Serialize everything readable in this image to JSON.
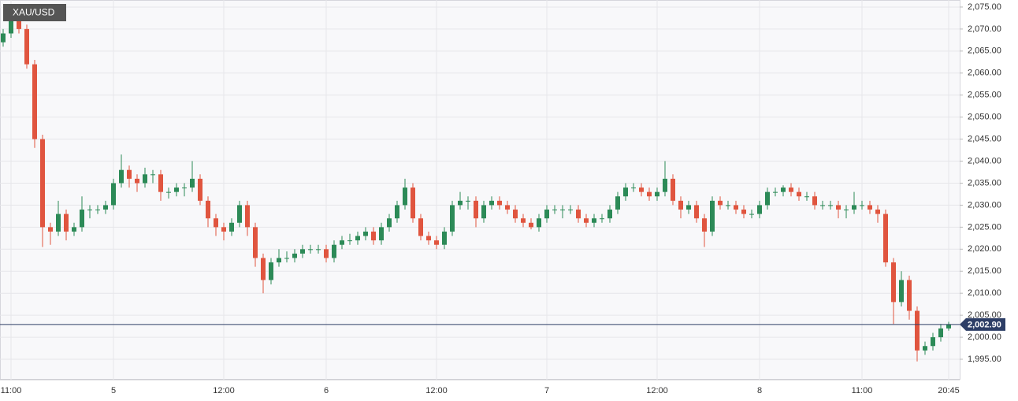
{
  "chart_data": {
    "type": "candlestick",
    "title": "XAU/USD",
    "up_color": "#2c8a57",
    "down_color": "#e0553f",
    "grid": true,
    "ylim": [
      1990.35,
      2076.6
    ],
    "yticks": [
      {
        "value": 1995,
        "label": "1,995.00"
      },
      {
        "value": 2000,
        "label": "2,000.00"
      },
      {
        "value": 2005,
        "label": "2,005.00"
      },
      {
        "value": 2010,
        "label": "2,010.00"
      },
      {
        "value": 2015,
        "label": "2,015.00"
      },
      {
        "value": 2020,
        "label": "2,020.00"
      },
      {
        "value": 2025,
        "label": "2,025.00"
      },
      {
        "value": 2030,
        "label": "2,030.00"
      },
      {
        "value": 2035,
        "label": "2,035.00"
      },
      {
        "value": 2040,
        "label": "2,040.00"
      },
      {
        "value": 2045,
        "label": "2,045.00"
      },
      {
        "value": 2050,
        "label": "2,050.00"
      },
      {
        "value": 2055,
        "label": "2,055.00"
      },
      {
        "value": 2060,
        "label": "2,060.00"
      },
      {
        "value": 2065,
        "label": "2,065.00"
      },
      {
        "value": 2070,
        "label": "2,070.00"
      },
      {
        "value": 2075,
        "label": "2,075.00"
      }
    ],
    "last_price": {
      "value": 2002.9,
      "label": "2,002.90",
      "color": "#2d3e66"
    },
    "categories": [
      null,
      "11:00",
      null,
      null,
      null,
      null,
      null,
      null,
      null,
      null,
      null,
      null,
      null,
      null,
      "5",
      null,
      null,
      null,
      null,
      null,
      null,
      null,
      null,
      null,
      null,
      null,
      null,
      null,
      "12:00",
      null,
      null,
      null,
      null,
      null,
      null,
      null,
      null,
      null,
      null,
      null,
      null,
      "6",
      null,
      null,
      null,
      null,
      null,
      null,
      null,
      null,
      null,
      null,
      null,
      null,
      null,
      "12:00",
      null,
      null,
      null,
      null,
      null,
      null,
      null,
      null,
      null,
      null,
      null,
      null,
      null,
      "7",
      null,
      null,
      null,
      null,
      null,
      null,
      null,
      null,
      null,
      null,
      null,
      null,
      null,
      "12:00",
      null,
      null,
      null,
      null,
      null,
      null,
      null,
      null,
      null,
      null,
      null,
      null,
      "8",
      null,
      null,
      null,
      null,
      null,
      null,
      null,
      null,
      null,
      null,
      null,
      null,
      "11:00",
      null,
      null,
      null,
      null,
      null,
      null,
      null,
      null,
      null,
      null,
      "20:45"
    ],
    "open": [
      2067,
      2069,
      2072,
      2070,
      2062,
      2045,
      2025,
      2024,
      2028,
      2024,
      2025,
      2029,
      2029,
      2029,
      2030,
      2035,
      2038,
      2036,
      2035,
      2037,
      2037,
      2033,
      2033,
      2034,
      2034,
      2036,
      2031,
      2027,
      2025,
      2024,
      2026,
      2030,
      2025,
      2018,
      2013,
      2017,
      2018,
      2018,
      2019,
      2020,
      2020,
      2020,
      2018,
      2021,
      2022,
      2022,
      2023,
      2024,
      2022,
      2025,
      2027,
      2030,
      2034,
      2027,
      2023,
      2022,
      2021,
      2024,
      2030,
      2031,
      2031,
      2027,
      2030,
      2031,
      2030,
      2029,
      2027,
      2026,
      2025,
      2027,
      2029,
      2029,
      2029,
      2029,
      2027,
      2026,
      2027,
      2027,
      2029,
      2032,
      2034,
      2034,
      2033,
      2032,
      2033,
      2036,
      2031,
      2029,
      2030,
      2027,
      2024,
      2031,
      2030,
      2030,
      2029,
      2028,
      2028,
      2030,
      2033,
      2033,
      2034,
      2033,
      2032,
      2032,
      2030,
      2030,
      2030,
      2029,
      2029,
      2030,
      2030,
      2029,
      2028,
      2017,
      2008,
      2013,
      2006,
      1997,
      1998,
      2000,
      2002
    ],
    "high": [
      2070,
      2075,
      2073,
      2071,
      2063,
      2046,
      2026,
      2031,
      2029,
      2026,
      2032,
      2030,
      2030,
      2031,
      2036,
      2041.5,
      2039,
      2037,
      2038.5,
      2038,
      2038,
      2034,
      2035,
      2035,
      2040,
      2037,
      2032,
      2028,
      2026,
      2027,
      2031,
      2031,
      2026,
      2019,
      2018,
      2020,
      2019.5,
      2020,
      2021,
      2021,
      2021,
      2021,
      2022,
      2023,
      2023.5,
      2024,
      2025,
      2025,
      2026,
      2028,
      2031,
      2036,
      2035,
      2028,
      2024,
      2023,
      2025,
      2031,
      2033,
      2032,
      2032,
      2031,
      2032,
      2032,
      2031,
      2030,
      2028,
      2027,
      2028,
      2030,
      2030,
      2030,
      2030,
      2030,
      2028,
      2028,
      2028,
      2030,
      2033,
      2035,
      2035,
      2035,
      2034,
      2034,
      2040,
      2037,
      2032,
      2031,
      2031,
      2028,
      2032,
      2032,
      2031,
      2031,
      2030,
      2029,
      2031,
      2034,
      2034,
      2034.5,
      2035,
      2034,
      2033,
      2033,
      2031,
      2031,
      2031,
      2030,
      2033,
      2031,
      2031,
      2030,
      2029,
      2018,
      2015,
      2014,
      2007,
      1999,
      2001,
      2003,
      2003.5
    ],
    "low": [
      2066,
      2068,
      2069,
      2061,
      2043,
      2020.5,
      2021,
      2023,
      2022,
      2023,
      2024,
      2027,
      2028,
      2028,
      2029,
      2034,
      2034,
      2033,
      2034,
      2035,
      2031,
      2031.5,
      2032,
      2032,
      2033,
      2030,
      2025,
      2023,
      2022,
      2023,
      2025,
      2023,
      2016,
      2010,
      2012,
      2016,
      2017,
      2017,
      2018,
      2019,
      2019,
      2017,
      2017,
      2020,
      2021,
      2021,
      2022,
      2021,
      2021,
      2024,
      2026,
      2029,
      2026,
      2022,
      2021,
      2020,
      2020,
      2023,
      2029,
      2029,
      2025,
      2026,
      2029,
      2029,
      2028,
      2026,
      2025,
      2024.5,
      2024,
      2026,
      2028,
      2027,
      2028,
      2026,
      2025,
      2025,
      2026,
      2026,
      2028,
      2031,
      2033,
      2032,
      2031,
      2031,
      2032,
      2030,
      2027,
      2028,
      2026,
      2020.5,
      2023,
      2029,
      2029,
      2028,
      2027,
      2027,
      2027,
      2029,
      2032,
      2032,
      2032,
      2031,
      2031,
      2029,
      2029,
      2029,
      2027,
      2027,
      2028,
      2029,
      2028,
      2026,
      2016,
      2003,
      2007,
      2004,
      1994.5,
      1996,
      1997,
      1999,
      2001.5
    ],
    "close": [
      2069,
      2072,
      2070,
      2062,
      2045,
      2025,
      2024,
      2028,
      2024,
      2025,
      2029,
      2029,
      2029,
      2030,
      2035,
      2038,
      2036,
      2035,
      2037,
      2037,
      2033,
      2033,
      2034,
      2034,
      2036,
      2031,
      2027,
      2025,
      2024,
      2026,
      2030,
      2025,
      2018,
      2013,
      2017,
      2018,
      2018,
      2019,
      2020,
      2020,
      2020,
      2018,
      2021,
      2022,
      2022,
      2023,
      2024,
      2022,
      2025,
      2027,
      2030,
      2034,
      2027,
      2023,
      2022,
      2021,
      2024,
      2030,
      2031,
      2031,
      2027,
      2030,
      2031,
      2030,
      2029,
      2027,
      2026,
      2025,
      2027,
      2029,
      2029,
      2029,
      2029,
      2027,
      2026,
      2027,
      2027,
      2029,
      2032,
      2034,
      2034,
      2033,
      2032,
      2033,
      2036,
      2031,
      2029,
      2030,
      2027,
      2024,
      2031,
      2030,
      2030,
      2029,
      2028,
      2028,
      2030,
      2033,
      2033,
      2034,
      2033,
      2032,
      2032,
      2030,
      2030,
      2030,
      2029,
      2029,
      2030,
      2030,
      2029,
      2028,
      2017,
      2008,
      2013,
      2006,
      1997,
      1998,
      2000,
      2002,
      2002.9
    ]
  }
}
